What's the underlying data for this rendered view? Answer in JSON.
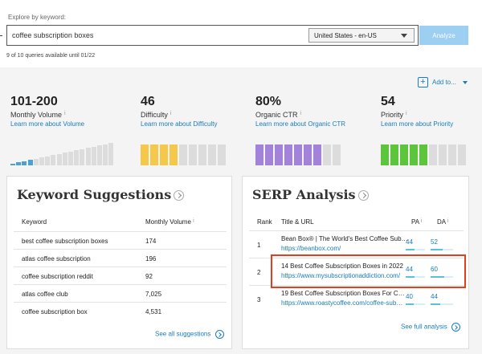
{
  "explore": {
    "label": "Explore by keyword:",
    "query": "coffee subscription boxes",
    "locale": "United States - en-US",
    "analyze_label": "Analyze",
    "queries_note": "9 of 10 queries available until 01/22"
  },
  "add_to": {
    "label": "Add to..."
  },
  "metrics": [
    {
      "value": "101-200",
      "label": "Monthly Volume",
      "link": "Learn more about Volume",
      "color": "#4ba0d8",
      "filled": 4,
      "total": 18
    },
    {
      "value": "46",
      "label": "Difficulty",
      "link": "Learn more about Difficulty",
      "color": "#f5c84c",
      "filled": 4,
      "total": 9
    },
    {
      "value": "80%",
      "label": "Organic CTR",
      "link": "Learn more about Organic CTR",
      "color": "#a283d9",
      "filled": 7,
      "total": 9
    },
    {
      "value": "54",
      "label": "Priority",
      "link": "Learn more about Priority",
      "color": "#5cc53c",
      "filled": 5,
      "total": 9
    }
  ],
  "keyword_suggestions": {
    "title": "Keyword Suggestions",
    "col_keyword": "Keyword",
    "col_volume": "Monthly Volume",
    "rows": [
      {
        "keyword": "best coffee subscription boxes",
        "volume": "174"
      },
      {
        "keyword": "atlas coffee subscription",
        "volume": "196"
      },
      {
        "keyword": "coffee subscription reddit",
        "volume": "92"
      },
      {
        "keyword": "atlas coffee club",
        "volume": "7,025"
      },
      {
        "keyword": "coffee subscription box",
        "volume": "4,531"
      }
    ],
    "see_all": "See all suggestions"
  },
  "serp_analysis": {
    "title": "SERP Analysis",
    "col_rank": "Rank",
    "col_title": "Title & URL",
    "col_pa": "PA",
    "col_da": "DA",
    "rows": [
      {
        "rank": "1",
        "title": "Bean Box® | The World's Best Coffee Subscription",
        "url": "https://beanbox.com/",
        "pa": "44",
        "da": "52"
      },
      {
        "rank": "2",
        "title": "14 Best Coffee Subscription Boxes in 2022",
        "url": "https://www.mysubscriptionaddiction.com/",
        "pa": "44",
        "da": "60"
      },
      {
        "rank": "3",
        "title": "19 Best Coffee Subscription Boxes For Coffee Lovers",
        "url": "https://www.roastycoffee.com/coffee-subscription",
        "pa": "40",
        "da": "44"
      }
    ],
    "see_full": "See full analysis"
  },
  "info_mark": "i"
}
